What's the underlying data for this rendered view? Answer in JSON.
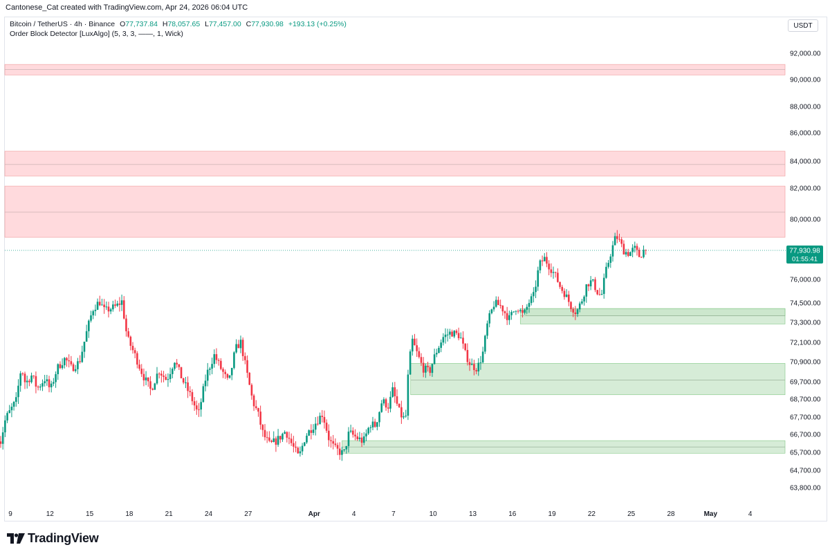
{
  "header": {
    "credit": "Cantonese_Cat created with TradingView.com, Apr 24, 2026 06:04 UTC"
  },
  "legend": {
    "symbol": "Bitcoin / TetherUS · 4h · Binance",
    "open_label": "O",
    "open": "77,737.84",
    "high_label": "H",
    "high": "78,057.65",
    "low_label": "L",
    "low": "77,457.00",
    "close_label": "C",
    "close": "77,930.98",
    "change": "+193.13 (+0.25%)",
    "indicator": "Order Block Detector [LuxAlgo] (5, 3, 3, ——, 1, Wick)"
  },
  "currency": "USDT",
  "footer": {
    "brand": "TradingView"
  },
  "colors": {
    "up": "#089981",
    "down": "#f23645",
    "bear_zone": "#ffcdd2",
    "bull_zone": "#c8e6c9",
    "price_label": "#089981"
  },
  "chart_data": {
    "type": "candlestick",
    "x_ticks": [
      "9",
      "12",
      "15",
      "18",
      "21",
      "24",
      "27",
      "Apr",
      "4",
      "7",
      "10",
      "13",
      "16",
      "19",
      "22",
      "25",
      "28",
      "May",
      "4"
    ],
    "x_tick_days": [
      9,
      12,
      15,
      18,
      21,
      24,
      27,
      32,
      35,
      38,
      41,
      44,
      47,
      50,
      53,
      56,
      59,
      62,
      65
    ],
    "y_ticks": [
      "92,000.00",
      "90,000.00",
      "88,000.00",
      "86,000.00",
      "84,000.00",
      "82,000.00",
      "80,000.00",
      "76,000.00",
      "74,500.00",
      "73,300.00",
      "72,100.00",
      "70,900.00",
      "69,700.00",
      "68,700.00",
      "67,700.00",
      "66,700.00",
      "65,700.00",
      "64,700.00",
      "63,800.00"
    ],
    "y_tick_values": [
      92000,
      90000,
      88000,
      86000,
      84000,
      82000,
      80000,
      76000,
      74500,
      73300,
      72100,
      70900,
      69700,
      68700,
      67700,
      66700,
      65700,
      64700,
      63800
    ],
    "last_price": {
      "price": 77930.98,
      "label": "77,930.98",
      "countdown": "01:55:41"
    },
    "bearish_order_blocks": [
      {
        "top": 91150,
        "mid": 90750,
        "bottom": 90350
      },
      {
        "top": 84700,
        "mid": 83750,
        "bottom": 82900
      },
      {
        "top": 82150,
        "mid": 80450,
        "bottom": 78800
      }
    ],
    "bullish_order_blocks": [
      {
        "start_day": 34.1,
        "top": 66350,
        "mid": 66000,
        "bottom": 65650
      },
      {
        "start_day": 39.3,
        "top": 70800,
        "mid": 69800,
        "bottom": 68950
      },
      {
        "start_day": 47.6,
        "top": 74150,
        "mid": 73700,
        "bottom": 73200
      },
      {
        "start_day": 48.05,
        "top": 74150,
        "mid": 73700,
        "bottom": 73700
      }
    ],
    "price_path": [
      [
        8.1,
        67000
      ],
      [
        8.4,
        66200
      ],
      [
        8.8,
        67600
      ],
      [
        9.6,
        68600
      ],
      [
        10.0,
        70600
      ],
      [
        10.3,
        69600
      ],
      [
        10.8,
        70100
      ],
      [
        11.2,
        69300
      ],
      [
        11.8,
        69900
      ],
      [
        12.2,
        69200
      ],
      [
        12.7,
        70500
      ],
      [
        13.3,
        71100
      ],
      [
        13.8,
        70500
      ],
      [
        14.4,
        70900
      ],
      [
        14.9,
        72600
      ],
      [
        15.4,
        74100
      ],
      [
        15.9,
        74600
      ],
      [
        16.3,
        74000
      ],
      [
        17.2,
        74300
      ],
      [
        17.6,
        74600
      ],
      [
        18.0,
        72400
      ],
      [
        18.6,
        71300
      ],
      [
        19.2,
        70100
      ],
      [
        19.8,
        69200
      ],
      [
        20.4,
        70400
      ],
      [
        21.0,
        69800
      ],
      [
        21.6,
        71000
      ],
      [
        22.2,
        69800
      ],
      [
        22.8,
        68900
      ],
      [
        23.4,
        67800
      ],
      [
        24.0,
        70100
      ],
      [
        24.6,
        71300
      ],
      [
        25.1,
        70500
      ],
      [
        25.7,
        69600
      ],
      [
        26.2,
        71700
      ],
      [
        26.6,
        72100
      ],
      [
        27.1,
        70100
      ],
      [
        27.5,
        68600
      ],
      [
        27.9,
        67900
      ],
      [
        28.3,
        66700
      ],
      [
        28.8,
        66100
      ],
      [
        29.4,
        66400
      ],
      [
        30.0,
        66900
      ],
      [
        30.5,
        66100
      ],
      [
        31.0,
        65400
      ],
      [
        31.5,
        66600
      ],
      [
        32.2,
        67300
      ],
      [
        32.8,
        67900
      ],
      [
        33.3,
        66400
      ],
      [
        33.7,
        65900
      ],
      [
        34.4,
        65600
      ],
      [
        34.8,
        66800
      ],
      [
        35.4,
        66500
      ],
      [
        35.9,
        66300
      ],
      [
        36.4,
        67300
      ],
      [
        36.8,
        67200
      ],
      [
        37.3,
        68600
      ],
      [
        37.8,
        68300
      ],
      [
        38.1,
        69200
      ],
      [
        38.6,
        68000
      ],
      [
        38.9,
        67600
      ],
      [
        39.15,
        67800
      ],
      [
        39.3,
        70600
      ],
      [
        39.6,
        72200
      ],
      [
        40.0,
        71300
      ],
      [
        40.4,
        70500
      ],
      [
        40.9,
        70300
      ],
      [
        41.3,
        71300
      ],
      [
        41.9,
        72400
      ],
      [
        42.5,
        72700
      ],
      [
        43.2,
        72500
      ],
      [
        43.6,
        71400
      ],
      [
        44.0,
        70700
      ],
      [
        44.5,
        70500
      ],
      [
        44.9,
        71300
      ],
      [
        45.3,
        73300
      ],
      [
        45.8,
        74500
      ],
      [
        46.3,
        74300
      ],
      [
        46.9,
        73500
      ],
      [
        47.5,
        74300
      ],
      [
        48.0,
        73700
      ],
      [
        48.4,
        74500
      ],
      [
        48.8,
        75000
      ],
      [
        49.2,
        77000
      ],
      [
        49.6,
        77400
      ],
      [
        50.0,
        76800
      ],
      [
        50.4,
        76300
      ],
      [
        50.8,
        75500
      ],
      [
        51.2,
        75000
      ],
      [
        51.6,
        74300
      ],
      [
        52.0,
        73900
      ],
      [
        52.4,
        74600
      ],
      [
        52.8,
        75700
      ],
      [
        53.2,
        75900
      ],
      [
        53.6,
        75200
      ],
      [
        53.9,
        74900
      ],
      [
        54.2,
        76400
      ],
      [
        54.6,
        77700
      ],
      [
        55.0,
        78900
      ],
      [
        55.3,
        78500
      ],
      [
        55.6,
        77900
      ],
      [
        56.0,
        77700
      ],
      [
        56.4,
        78100
      ],
      [
        56.8,
        77500
      ],
      [
        57.1,
        77930
      ]
    ]
  }
}
